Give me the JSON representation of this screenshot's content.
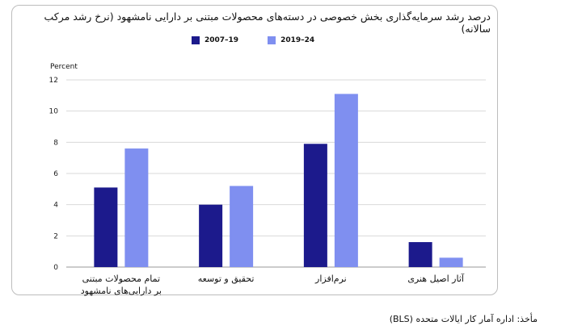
{
  "title": "درصد رشد سرمایه‌گذاری بخش خصوصی در دسته‌های محصولات مبتنی بر دارایی نامشهود (نرخ رشد مرکب سالانه)",
  "source": "مأخذ: اداره آمار کار ایالات متحده (BLS)",
  "colors": {
    "series1": "#1c1a8c",
    "series2": "#7f8ff0"
  },
  "chart_data": {
    "type": "bar",
    "ylabel": "Percent",
    "ylim": [
      0,
      12
    ],
    "yticks": [
      "0",
      "2",
      "4",
      "6",
      "8",
      "10",
      "12"
    ],
    "categories": [
      [
        "تمام محصولات مبتنی",
        "بر دارایی‌های نامشهود"
      ],
      [
        "تحقیق و توسعه"
      ],
      [
        "نرم‌افزار"
      ],
      [
        "آثار اصیل هنری"
      ]
    ],
    "series": [
      {
        "name": "2007–19",
        "values": [
          5.1,
          4.0,
          7.9,
          1.6
        ]
      },
      {
        "name": "2019–24",
        "values": [
          7.6,
          5.2,
          11.1,
          0.6
        ]
      }
    ]
  }
}
